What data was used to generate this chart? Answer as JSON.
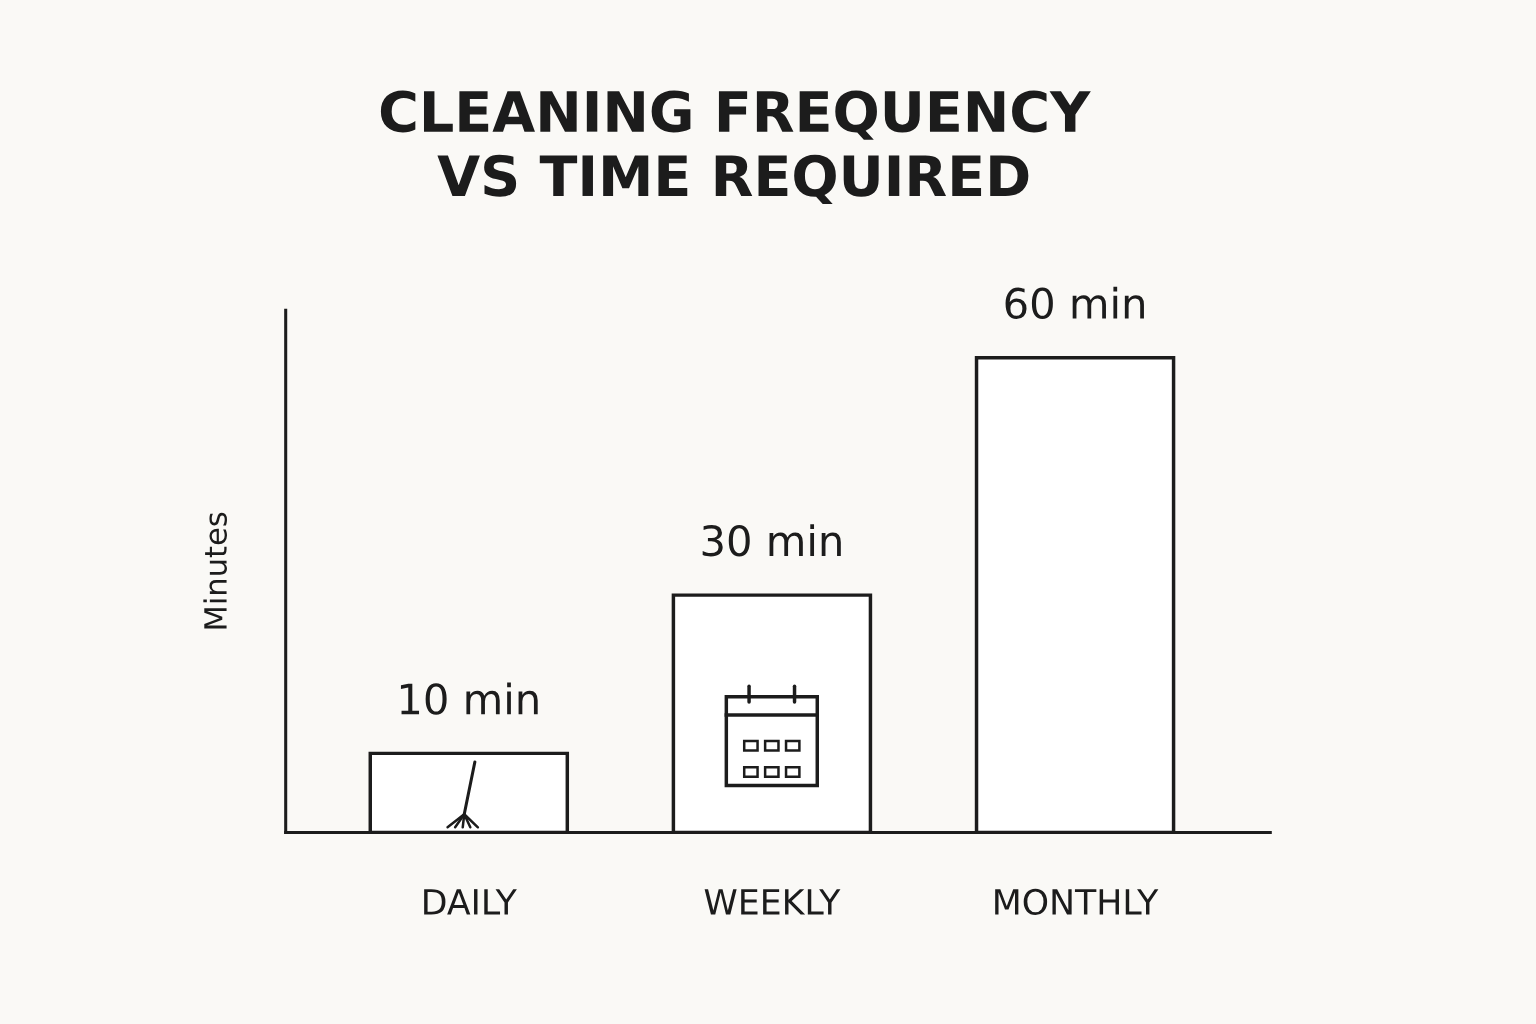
{
  "chart_data": {
    "type": "bar",
    "title": "CLEANING FREQUENCY\nVS TIME REQUIRED",
    "ylabel": "Minutes",
    "categories": [
      "DAILY",
      "WEEKLY",
      "MONTHLY"
    ],
    "values": [
      10,
      30,
      60
    ],
    "value_labels": [
      "10 min",
      "30 min",
      "60 min"
    ],
    "color": "#ffffff",
    "ylim": [
      0,
      66
    ],
    "tick_labels": "x",
    "grid": false
  }
}
